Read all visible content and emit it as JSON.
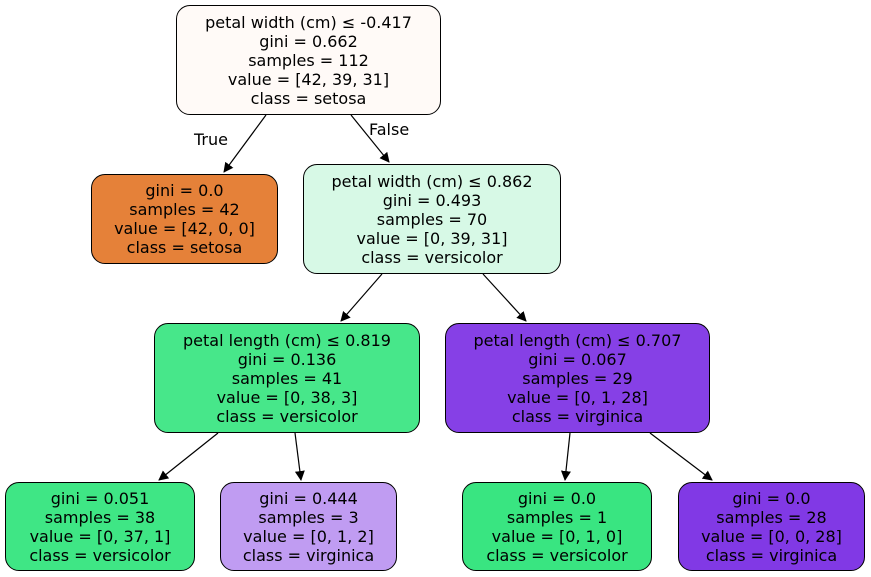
{
  "tree": {
    "nodes": [
      {
        "id": "root",
        "lines": [
          "petal width (cm) ≤ -0.417",
          "gini = 0.662",
          "samples = 112",
          "value = [42, 39, 31]",
          "class = setosa"
        ],
        "color": "#fffaf7"
      },
      {
        "id": "n1",
        "lines": [
          "gini = 0.0",
          "samples = 42",
          "value = [42, 0, 0]",
          "class = setosa"
        ],
        "color": "#e58139"
      },
      {
        "id": "n2",
        "lines": [
          "petal width (cm) ≤ 0.862",
          "gini = 0.493",
          "samples = 70",
          "value = [0, 39, 31]",
          "class = versicolor"
        ],
        "color": "#d7f9e6"
      },
      {
        "id": "n3",
        "lines": [
          "petal length (cm) ≤ 0.819",
          "gini = 0.136",
          "samples = 41",
          "value = [0, 38, 3]",
          "class = versicolor"
        ],
        "color": "#47e78a"
      },
      {
        "id": "n4",
        "lines": [
          "petal length (cm) ≤ 0.707",
          "gini = 0.067",
          "samples = 29",
          "value = [0, 1, 28]",
          "class = virginica"
        ],
        "color": "#8640e6"
      },
      {
        "id": "n5",
        "lines": [
          "gini = 0.051",
          "samples = 38",
          "value = [0, 37, 1]",
          "class = versicolor"
        ],
        "color": "#3fe685"
      },
      {
        "id": "n6",
        "lines": [
          "gini = 0.444",
          "samples = 3",
          "value = [0, 1, 2]",
          "class = virginica"
        ],
        "color": "#c09cf2"
      },
      {
        "id": "n7",
        "lines": [
          "gini = 0.0",
          "samples = 1",
          "value = [0, 1, 0]",
          "class = versicolor"
        ],
        "color": "#39e581"
      },
      {
        "id": "n8",
        "lines": [
          "gini = 0.0",
          "samples = 28",
          "value = [0, 0, 28]",
          "class = virginica"
        ],
        "color": "#8139e5"
      }
    ],
    "edge_labels": {
      "true_label": "True",
      "false_label": "False"
    }
  }
}
